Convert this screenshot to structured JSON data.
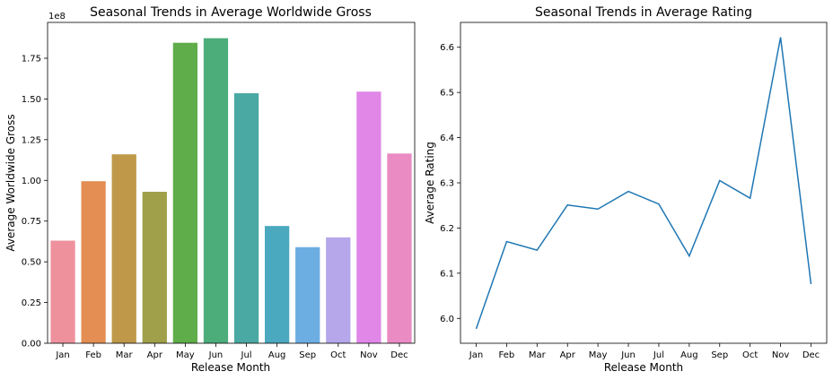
{
  "chart_data": [
    {
      "type": "bar",
      "title": "Seasonal Trends in Average Worldwide Gross",
      "xlabel": "Release Month",
      "ylabel": "Average Worldwide Gross",
      "y_offset_label": "1e8",
      "categories": [
        "Jan",
        "Feb",
        "Mar",
        "Apr",
        "May",
        "Jun",
        "Jul",
        "Aug",
        "Sep",
        "Oct",
        "Nov",
        "Dec"
      ],
      "values": [
        0.63,
        0.995,
        1.16,
        0.93,
        1.845,
        1.873,
        1.535,
        0.72,
        0.59,
        0.65,
        1.545,
        1.165
      ],
      "ylim": [
        0,
        1.97
      ],
      "yticks": [
        0.0,
        0.25,
        0.5,
        0.75,
        1.0,
        1.25,
        1.5,
        1.75
      ],
      "ytick_labels": [
        "0.00",
        "0.25",
        "0.50",
        "0.75",
        "1.00",
        "1.25",
        "1.50",
        "1.75"
      ],
      "colors": [
        "#ee919d",
        "#e48e54",
        "#bf9849",
        "#a0a04a",
        "#5fad4a",
        "#4cad7b",
        "#4aa9a2",
        "#4aa9bf",
        "#6daee2",
        "#b5a7ea",
        "#e087e8",
        "#ea8bc4"
      ],
      "grid": false
    },
    {
      "type": "line",
      "title": "Seasonal Trends in Average Rating",
      "xlabel": "Release Month",
      "ylabel": "Average Rating",
      "categories": [
        "Jan",
        "Feb",
        "Mar",
        "Apr",
        "May",
        "Jun",
        "Jul",
        "Aug",
        "Sep",
        "Oct",
        "Nov",
        "Dec"
      ],
      "values": [
        5.977,
        6.17,
        6.151,
        6.251,
        6.242,
        6.281,
        6.253,
        6.138,
        6.305,
        6.266,
        6.622,
        6.076
      ],
      "ylim": [
        5.945,
        6.655
      ],
      "yticks": [
        6.0,
        6.1,
        6.2,
        6.3,
        6.4,
        6.5,
        6.6
      ],
      "ytick_labels": [
        "6.0",
        "6.1",
        "6.2",
        "6.3",
        "6.4",
        "6.5",
        "6.6"
      ],
      "color": "#1f77b4",
      "grid": false
    }
  ]
}
